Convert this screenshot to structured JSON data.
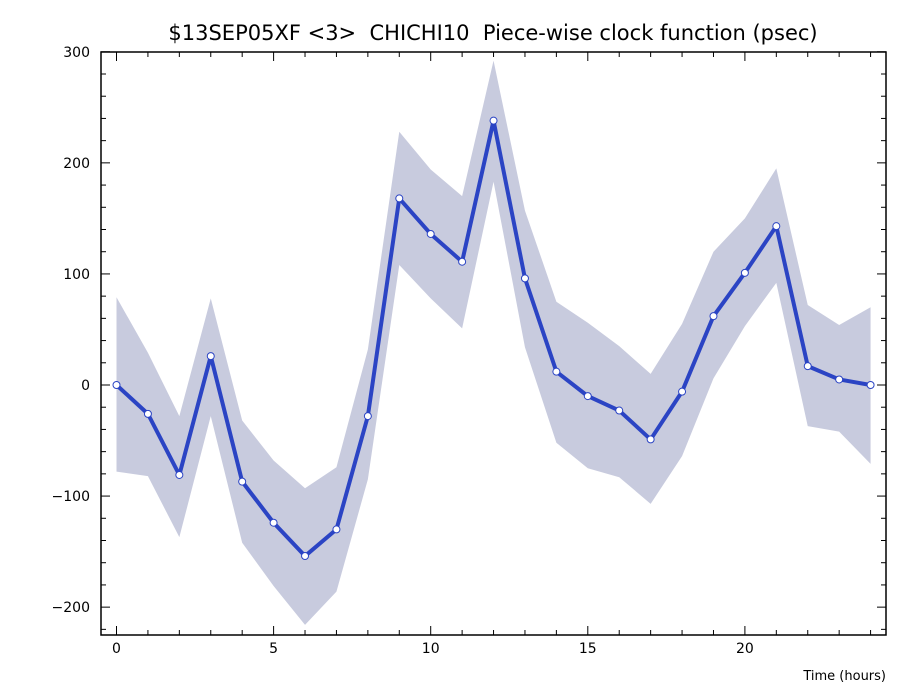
{
  "chart_data": {
    "type": "line",
    "title": "$13SEP05XF <3>  CHICHI10  Piece-wise clock function (psec)",
    "xlabel": "Time (hours)",
    "ylabel": "",
    "xlim": [
      -0.5,
      24.3
    ],
    "ylim": [
      -225,
      300
    ],
    "x_ticks": [
      0,
      5,
      10,
      15,
      20
    ],
    "y_ticks": [
      -200,
      -100,
      0,
      100,
      200,
      300
    ],
    "x_tick_labels": [
      "0",
      "5",
      "10",
      "15",
      "20"
    ],
    "y_tick_labels": [
      "−200",
      "−100",
      "0",
      "100",
      "200",
      "300"
    ],
    "grid": false,
    "legend": "none",
    "colors": {
      "line": "#2b44c4",
      "band": "#c8cbde",
      "axes": "#000000",
      "marker_fill": "#ffffff"
    },
    "series": [
      {
        "x": [
          0,
          1,
          2,
          3,
          4,
          5,
          6,
          7,
          8,
          9,
          10,
          11,
          12,
          13,
          14,
          15,
          16,
          17,
          18,
          19,
          20,
          21,
          22,
          23,
          24
        ],
        "values": [
          0,
          -26,
          -81,
          26,
          -87,
          -124,
          -154,
          -130,
          -28,
          168,
          136,
          111,
          238,
          96,
          12,
          -10,
          -23,
          -49,
          -6,
          62,
          101,
          143,
          17,
          5,
          0
        ],
        "upper": [
          79,
          29,
          -28,
          78,
          -32,
          -68,
          -93,
          -74,
          32,
          228,
          194,
          170,
          292,
          157,
          75,
          56,
          35,
          10,
          55,
          120,
          150,
          195,
          72,
          54,
          70
        ],
        "lower": [
          -78,
          -82,
          -137,
          -28,
          -142,
          -181,
          -216,
          -186,
          -85,
          108,
          78,
          51,
          183,
          34,
          -52,
          -75,
          -83,
          -107,
          -64,
          6,
          53,
          92,
          -37,
          -42,
          -71
        ]
      }
    ]
  }
}
